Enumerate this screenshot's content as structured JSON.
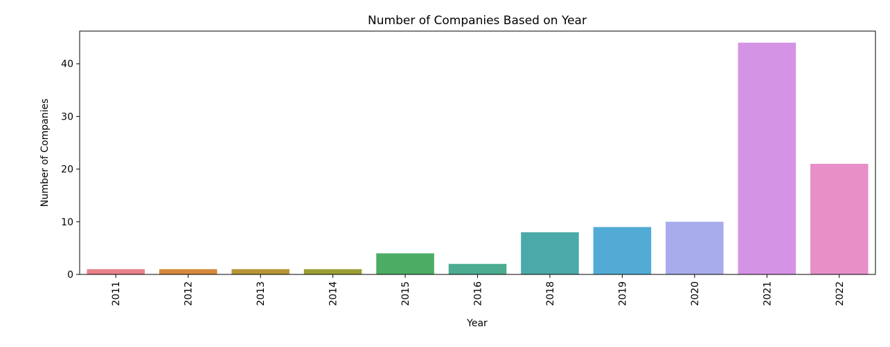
{
  "chart_data": {
    "type": "bar",
    "title": "Number of Companies Based on Year",
    "xlabel": "Year",
    "ylabel": "Number of Companies",
    "categories": [
      "2011",
      "2012",
      "2013",
      "2014",
      "2015",
      "2016",
      "2018",
      "2019",
      "2020",
      "2021",
      "2022"
    ],
    "values": [
      1,
      1,
      1,
      1,
      4,
      2,
      8,
      9,
      10,
      44,
      21
    ],
    "colors": [
      "#e8818a",
      "#d6893c",
      "#b79536",
      "#9b9f35",
      "#4aad63",
      "#4bac8f",
      "#4aaaa9",
      "#52abd5",
      "#a8acec",
      "#d593e6",
      "#e88fc8"
    ],
    "ylim": [
      0,
      46.2
    ],
    "yticks": [
      "0",
      "10",
      "20",
      "30",
      "40"
    ],
    "grid": false,
    "legend": "none"
  }
}
